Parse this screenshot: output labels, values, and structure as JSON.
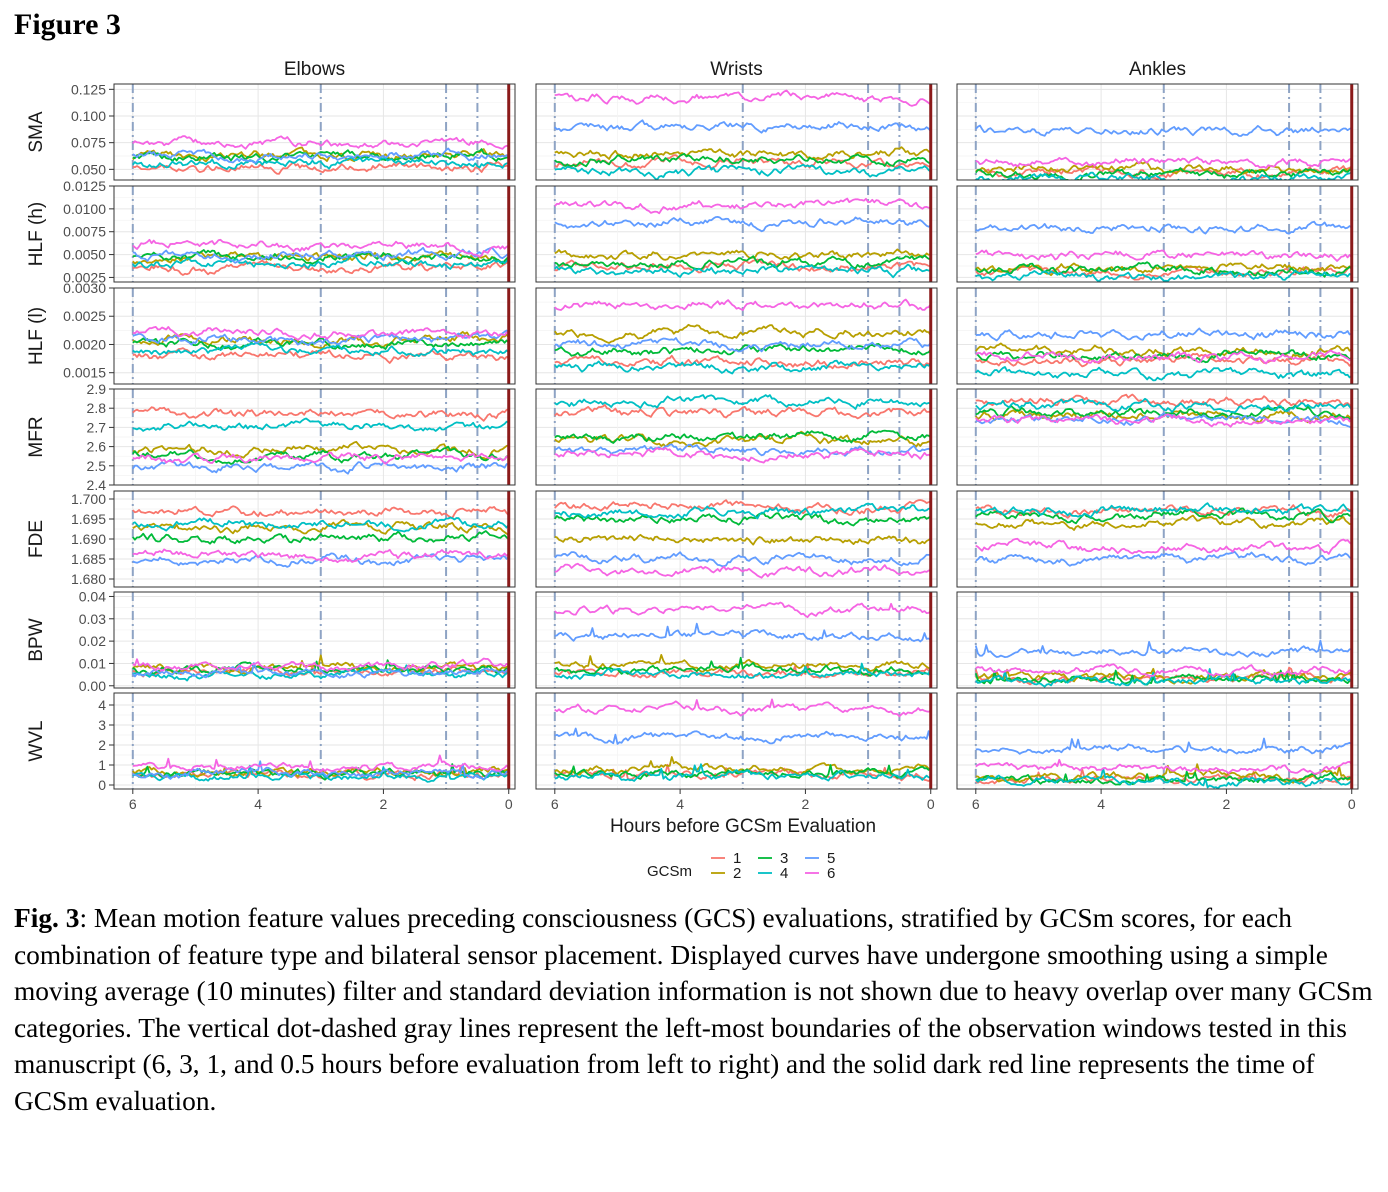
{
  "figure_label": "Figure 3",
  "caption": {
    "label": "Fig. 3",
    "text": ": Mean motion feature values preceding consciousness (GCS) evaluations, stratified by GCSm scores, for each combination of feature type and bilateral sensor placement. Displayed curves have undergone smoothing using a simple moving average (10 minutes) filter and standard deviation information is not shown due to heavy overlap over many GCSm categories. The vertical dot-dashed gray lines represent the left-most boundaries of the observation windows tested in this manuscript (6, 3, 1, and 0.5 hours before evaluation from left to right) and the solid dark red line represents the time of GCSm evaluation."
  },
  "chart_data": {
    "type": "line",
    "facets": {
      "columns": [
        "Elbows",
        "Wrists",
        "Ankles"
      ],
      "rows": [
        {
          "label": "SMA",
          "ylim": [
            0.04,
            0.13
          ],
          "ticks": [
            "0.125",
            "0.100",
            "0.075",
            "0.050"
          ],
          "tick_values": [
            0.125,
            0.1,
            0.075,
            0.05
          ]
        },
        {
          "label": "HLF (h)",
          "ylim": [
            0.002,
            0.0125
          ],
          "ticks": [
            "0.0125",
            "0.0100",
            "0.0075",
            "0.0050",
            "0.0025"
          ],
          "tick_values": [
            0.0125,
            0.01,
            0.0075,
            0.005,
            0.0025
          ]
        },
        {
          "label": "HLF (l)",
          "ylim": [
            0.0013,
            0.003
          ],
          "ticks": [
            "0.0030",
            "0.0025",
            "0.0020",
            "0.0015"
          ],
          "tick_values": [
            0.003,
            0.0025,
            0.002,
            0.0015
          ]
        },
        {
          "label": "MFR",
          "ylim": [
            2.4,
            2.9
          ],
          "ticks": [
            "2.9",
            "2.8",
            "2.7",
            "2.6",
            "2.5",
            "2.4"
          ],
          "tick_values": [
            2.9,
            2.8,
            2.7,
            2.6,
            2.5,
            2.4
          ]
        },
        {
          "label": "FDE",
          "ylim": [
            1.678,
            1.702
          ],
          "ticks": [
            "1.700",
            "1.695",
            "1.690",
            "1.685",
            "1.680"
          ],
          "tick_values": [
            1.7,
            1.695,
            1.69,
            1.685,
            1.68
          ]
        },
        {
          "label": "BPW",
          "ylim": [
            -0.001,
            0.042
          ],
          "ticks": [
            "0.04",
            "0.03",
            "0.02",
            "0.01",
            "0.00"
          ],
          "tick_values": [
            0.04,
            0.03,
            0.02,
            0.01,
            0.0
          ]
        },
        {
          "label": "WVL",
          "ylim": [
            -0.2,
            4.6
          ],
          "ticks": [
            "4",
            "3",
            "2",
            "1",
            "0"
          ],
          "tick_values": [
            4,
            3,
            2,
            1,
            0
          ]
        }
      ]
    },
    "xlabel": "Hours before GCSm Evaluation",
    "xlim": [
      6.3,
      -0.1
    ],
    "x_ticks": [
      6,
      4,
      2,
      0
    ],
    "x_tick_labels": [
      "6",
      "4",
      "2",
      "0"
    ],
    "vertical_reference_lines": {
      "dot_dashed_gray_hours": [
        6,
        3,
        1,
        0.5
      ],
      "solid_dark_red_hours": [
        0
      ]
    },
    "legend": {
      "title": "GCSm",
      "placement": "bottom",
      "entries": [
        "1",
        "2",
        "3",
        "4",
        "5",
        "6"
      ]
    },
    "series_colors": {
      "1": "#F8766D",
      "2": "#B79F00",
      "3": "#00BA38",
      "4": "#00BFC4",
      "5": "#619CFF",
      "6": "#F564E3"
    },
    "reference_line_colors": {
      "window": "#8EA3C4",
      "evaluation": "#8B1A1A"
    },
    "approx_series_means": {
      "SMA": {
        "Elbows": [
          0.052,
          0.062,
          0.061,
          0.056,
          0.063,
          0.075
        ],
        "Wrists": [
          0.056,
          0.065,
          0.06,
          0.048,
          0.09,
          0.117
        ],
        "Ankles": [
          0.047,
          0.05,
          0.045,
          0.041,
          0.085,
          0.057
        ]
      },
      "HLF (h)": {
        "Elbows": [
          0.0035,
          0.0045,
          0.0047,
          0.0041,
          0.005,
          0.006
        ],
        "Wrists": [
          0.0035,
          0.005,
          0.0042,
          0.0032,
          0.0085,
          0.0105
        ],
        "Ankles": [
          0.003,
          0.0035,
          0.0033,
          0.0027,
          0.008,
          0.005
        ]
      },
      "HLF (l)": {
        "Elbows": [
          0.0018,
          0.0021,
          0.002,
          0.0019,
          0.0021,
          0.0022
        ],
        "Wrists": [
          0.0017,
          0.0022,
          0.0019,
          0.0016,
          0.002,
          0.0027
        ],
        "Ankles": [
          0.0017,
          0.0019,
          0.0018,
          0.0015,
          0.0022,
          0.0018
        ]
      },
      "MFR": {
        "Elbows": [
          2.77,
          2.58,
          2.55,
          2.7,
          2.5,
          2.54
        ],
        "Wrists": [
          2.77,
          2.63,
          2.65,
          2.84,
          2.58,
          2.57
        ],
        "Ankles": [
          2.83,
          2.76,
          2.78,
          2.81,
          2.74,
          2.74
        ]
      },
      "FDE": {
        "Elbows": [
          1.697,
          1.693,
          1.69,
          1.694,
          1.685,
          1.686
        ],
        "Wrists": [
          1.698,
          1.69,
          1.695,
          1.697,
          1.685,
          1.682
        ],
        "Ankles": [
          1.697,
          1.694,
          1.696,
          1.697,
          1.685,
          1.688
        ]
      },
      "BPW": {
        "Elbows": [
          0.006,
          0.008,
          0.007,
          0.005,
          0.006,
          0.009
        ],
        "Wrists": [
          0.006,
          0.009,
          0.007,
          0.005,
          0.022,
          0.034
        ],
        "Ankles": [
          0.003,
          0.004,
          0.003,
          0.002,
          0.015,
          0.007
        ]
      },
      "WVL": {
        "Elbows": [
          0.5,
          0.7,
          0.6,
          0.4,
          0.6,
          0.9
        ],
        "Wrists": [
          0.5,
          0.8,
          0.6,
          0.4,
          2.4,
          3.8
        ],
        "Ankles": [
          0.3,
          0.4,
          0.3,
          0.2,
          1.8,
          0.8
        ]
      }
    }
  }
}
